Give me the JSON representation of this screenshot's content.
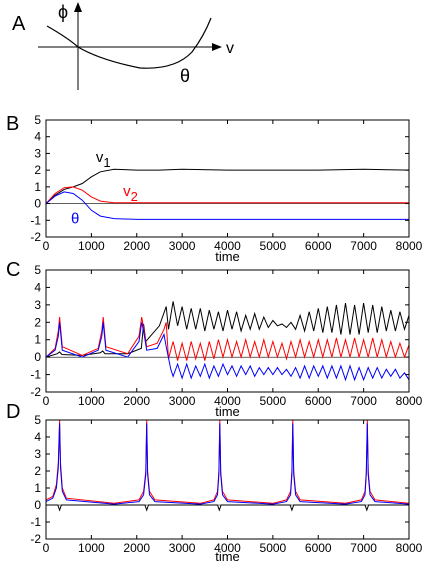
{
  "colors": {
    "black": "#000000",
    "red": "#ff0000",
    "blue": "#0000ff"
  },
  "panel_a": {
    "letter": "A",
    "phi_label": "ϕ",
    "v_label": "v",
    "theta_label": "θ"
  },
  "chart_data": [
    {
      "panel": "B",
      "type": "line",
      "xlabel": "time",
      "xlim": [
        0,
        8000
      ],
      "ylim": [
        -2,
        5
      ],
      "x_ticks": [
        0,
        1000,
        2000,
        3000,
        4000,
        5000,
        6000,
        7000,
        8000
      ],
      "y_ticks": [
        -2,
        -1,
        0,
        1,
        2,
        3,
        4,
        5
      ],
      "annotations": [
        {
          "text": "v",
          "sub": "1",
          "color": "#000000",
          "x": 1100,
          "y": 2.5
        },
        {
          "text": "v",
          "sub": "2",
          "color": "#ff0000",
          "x": 1700,
          "y": 0.45
        },
        {
          "text": "θ",
          "sub": "",
          "color": "#0000ff",
          "x": 550,
          "y": -1.2
        }
      ],
      "series": [
        {
          "color": "#000000",
          "x": [
            0,
            200,
            400,
            600,
            800,
            1000,
            1200,
            1500,
            2000,
            2500,
            3000,
            4000,
            5000,
            6000,
            7000,
            8000
          ],
          "y": [
            0,
            0.5,
            0.85,
            1.0,
            1.2,
            1.6,
            1.9,
            2.05,
            2.0,
            2.0,
            2.05,
            2.0,
            2.0,
            2.0,
            2.05,
            2.0
          ]
        },
        {
          "color": "#ff0000",
          "x": [
            0,
            200,
            400,
            600,
            800,
            1000,
            1200,
            1500,
            2000,
            3000,
            4000,
            5000,
            6000,
            7000,
            8000
          ],
          "y": [
            0,
            0.6,
            0.95,
            1.0,
            0.8,
            0.4,
            0.15,
            0.05,
            0.05,
            0.05,
            0.05,
            0.05,
            0.05,
            0.05,
            0.05
          ]
        },
        {
          "color": "#0000ff",
          "x": [
            0,
            200,
            400,
            600,
            800,
            1000,
            1200,
            1500,
            2000,
            3000,
            4000,
            5000,
            6000,
            7000,
            8000
          ],
          "y": [
            0,
            0.45,
            0.7,
            0.6,
            0.2,
            -0.4,
            -0.75,
            -0.9,
            -0.95,
            -0.95,
            -0.95,
            -0.95,
            -0.95,
            -0.95,
            -0.95
          ]
        }
      ]
    },
    {
      "panel": "C",
      "type": "line",
      "xlabel": "time",
      "xlim": [
        0,
        8000
      ],
      "ylim": [
        -2,
        5
      ],
      "x_ticks": [
        0,
        1000,
        2000,
        3000,
        4000,
        5000,
        6000,
        7000,
        8000
      ],
      "y_ticks": [
        -2,
        -1,
        0,
        1,
        2,
        3,
        4,
        5
      ],
      "series": [
        {
          "color": "#000000",
          "x": [
            0,
            250,
            300,
            350,
            800,
            1200,
            1250,
            1300,
            1800,
            2100,
            2150,
            2200,
            2500,
            2650,
            2700,
            2800,
            2900,
            3000,
            3100,
            3200,
            3300,
            3400,
            3500,
            3600,
            3700,
            3800,
            3900,
            4000,
            4100,
            4200,
            4300,
            4400,
            4500,
            4600,
            4700,
            4800,
            4900,
            5000,
            5100,
            5200,
            5300,
            5400,
            5500,
            5600,
            5700,
            5800,
            5900,
            6000,
            6100,
            6200,
            6300,
            6400,
            6500,
            6600,
            6700,
            6800,
            6900,
            7000,
            7100,
            7200,
            7300,
            7400,
            7500,
            7600,
            7700,
            7800,
            7900,
            8000
          ],
          "y": [
            0,
            0.2,
            0.3,
            0.15,
            0.1,
            0.25,
            0.35,
            0.2,
            0.2,
            0.5,
            1.9,
            0.9,
            1.8,
            2.9,
            1.6,
            3.2,
            1.8,
            2.9,
            1.6,
            2.8,
            1.6,
            2.8,
            1.5,
            2.7,
            1.6,
            2.6,
            1.5,
            2.7,
            1.6,
            2.6,
            1.5,
            2.4,
            1.6,
            2.5,
            1.6,
            2.3,
            1.7,
            2.1,
            1.8,
            1.9,
            1.7,
            2.0,
            1.6,
            2.4,
            1.5,
            2.6,
            1.5,
            2.8,
            1.4,
            2.9,
            1.4,
            3.0,
            1.3,
            3.1,
            1.3,
            3.0,
            1.3,
            3.1,
            1.4,
            3.0,
            1.4,
            2.9,
            1.5,
            2.7,
            1.5,
            2.6,
            1.6,
            2.4
          ]
        },
        {
          "color": "#ff0000",
          "x": [
            0,
            200,
            270,
            300,
            360,
            800,
            1150,
            1230,
            1260,
            1320,
            1800,
            2050,
            2110,
            2150,
            2220,
            2450,
            2600,
            2650,
            2700,
            2800,
            2900,
            3000,
            3100,
            3200,
            3300,
            3400,
            3500,
            3600,
            3700,
            3800,
            3900,
            4000,
            4100,
            4200,
            4300,
            4400,
            4500,
            4600,
            4700,
            4800,
            4900,
            5000,
            5100,
            5200,
            5300,
            5400,
            5500,
            5600,
            5700,
            5800,
            5900,
            6000,
            6100,
            6200,
            6300,
            6400,
            6500,
            6600,
            6700,
            6800,
            6900,
            7000,
            7100,
            7200,
            7300,
            7400,
            7500,
            7600,
            7700,
            7800,
            7900,
            8000
          ],
          "y": [
            0,
            0.5,
            1.5,
            2.3,
            0.6,
            0.1,
            0.5,
            1.5,
            2.3,
            0.6,
            0.2,
            1.2,
            2.3,
            1.7,
            0.6,
            0.8,
            1.6,
            2.0,
            -0.1,
            0.9,
            -0.2,
            0.8,
            -0.2,
            0.9,
            -0.1,
            0.8,
            -0.2,
            0.9,
            -0.1,
            1.0,
            0.0,
            1.0,
            0.0,
            0.9,
            0.0,
            1.0,
            0.0,
            0.9,
            0.0,
            1.0,
            0.0,
            0.9,
            0.0,
            0.8,
            -0.1,
            0.9,
            0.0,
            1.0,
            0.0,
            0.9,
            0.0,
            1.0,
            0.0,
            1.0,
            0.0,
            1.1,
            0.0,
            1.0,
            0.0,
            1.1,
            0.0,
            1.0,
            0.0,
            1.1,
            0.0,
            1.0,
            0.0,
            0.9,
            0.0,
            0.8,
            0.0,
            0.7
          ]
        },
        {
          "color": "#0000ff",
          "x": [
            0,
            200,
            270,
            300,
            360,
            800,
            1150,
            1230,
            1260,
            1320,
            1800,
            2050,
            2110,
            2150,
            2220,
            2450,
            2600,
            2650,
            2750,
            2800,
            2900,
            3000,
            3100,
            3200,
            3300,
            3400,
            3500,
            3600,
            3700,
            3800,
            3900,
            4000,
            4100,
            4200,
            4300,
            4400,
            4500,
            4600,
            4700,
            4800,
            4900,
            5000,
            5100,
            5200,
            5300,
            5400,
            5500,
            5600,
            5700,
            5800,
            5900,
            6000,
            6100,
            6200,
            6300,
            6400,
            6500,
            6600,
            6700,
            6800,
            6900,
            7000,
            7100,
            7200,
            7300,
            7400,
            7500,
            7600,
            7700,
            7800,
            7900,
            8000
          ],
          "y": [
            0,
            0.4,
            1.2,
            2.0,
            0.4,
            0.0,
            0.4,
            1.2,
            2.0,
            0.4,
            0.0,
            0.9,
            2.0,
            1.5,
            0.4,
            0.5,
            1.3,
            0.6,
            -0.7,
            -1.1,
            -0.4,
            -1.2,
            -0.4,
            -1.2,
            -0.5,
            -1.1,
            -0.4,
            -1.2,
            -0.5,
            -1.1,
            -0.4,
            -1.0,
            -0.5,
            -1.1,
            -0.5,
            -1.0,
            -0.5,
            -1.1,
            -0.6,
            -1.0,
            -0.6,
            -1.0,
            -0.6,
            -1.0,
            -0.7,
            -1.1,
            -0.6,
            -1.2,
            -0.5,
            -1.2,
            -0.5,
            -1.1,
            -0.5,
            -1.2,
            -0.5,
            -1.2,
            -0.5,
            -1.3,
            -0.5,
            -1.3,
            -0.6,
            -1.3,
            -0.6,
            -1.2,
            -0.6,
            -1.2,
            -0.7,
            -1.1,
            -0.7,
            -1.2,
            -0.9,
            -1.3
          ]
        }
      ]
    },
    {
      "panel": "D",
      "type": "line",
      "xlabel": "time",
      "xlim": [
        0,
        8000
      ],
      "ylim": [
        -2,
        5
      ],
      "x_ticks": [
        0,
        1000,
        2000,
        3000,
        4000,
        5000,
        6000,
        7000,
        8000
      ],
      "y_ticks": [
        -2,
        -1,
        0,
        1,
        2,
        3,
        4,
        5
      ],
      "series": [
        {
          "color": "#000000",
          "x": [
            0,
            260,
            300,
            340,
            2180,
            2220,
            2260,
            3780,
            3820,
            3860,
            5380,
            5420,
            5460,
            7030,
            7070,
            7110,
            8000
          ],
          "y": [
            0,
            0,
            -0.3,
            0,
            0,
            -0.3,
            0,
            0,
            -0.3,
            0,
            0,
            -0.3,
            0,
            0,
            -0.3,
            0,
            0
          ]
        },
        {
          "color": "#ff0000",
          "x": [
            0,
            150,
            230,
            270,
            300,
            320,
            360,
            450,
            1500,
            2050,
            2150,
            2200,
            2220,
            2240,
            2280,
            2400,
            3400,
            3700,
            3780,
            3810,
            3830,
            3850,
            3890,
            4000,
            5000,
            5300,
            5390,
            5420,
            5440,
            5460,
            5500,
            5600,
            6600,
            6950,
            7030,
            7060,
            7080,
            7100,
            7140,
            7250,
            8000
          ],
          "y": [
            0.3,
            0.5,
            1.2,
            2.5,
            5.0,
            2.5,
            1.0,
            0.4,
            0.1,
            0.3,
            0.8,
            2.0,
            5.0,
            2.0,
            0.8,
            0.3,
            0.1,
            0.3,
            0.8,
            2.0,
            5.0,
            2.0,
            0.8,
            0.3,
            0.1,
            0.3,
            0.8,
            2.0,
            5.0,
            2.0,
            0.8,
            0.3,
            0.1,
            0.3,
            0.8,
            2.0,
            5.0,
            2.0,
            0.8,
            0.3,
            0.1
          ]
        },
        {
          "color": "#0000ff",
          "x": [
            0,
            150,
            230,
            270,
            300,
            320,
            360,
            450,
            1500,
            2050,
            2150,
            2200,
            2220,
            2240,
            2280,
            2400,
            3400,
            3700,
            3780,
            3810,
            3830,
            3850,
            3890,
            4000,
            5000,
            5300,
            5390,
            5420,
            5440,
            5460,
            5500,
            5600,
            6600,
            6950,
            7030,
            7060,
            7080,
            7100,
            7140,
            7250,
            8000
          ],
          "y": [
            0.2,
            0.4,
            1.0,
            2.2,
            4.8,
            2.2,
            0.8,
            0.3,
            0.05,
            0.2,
            0.6,
            1.8,
            4.8,
            1.8,
            0.6,
            0.2,
            0.05,
            0.2,
            0.6,
            1.8,
            4.8,
            1.8,
            0.6,
            0.2,
            0.05,
            0.2,
            0.6,
            1.8,
            4.8,
            1.8,
            0.6,
            0.2,
            0.05,
            0.2,
            0.6,
            1.8,
            4.8,
            1.8,
            0.6,
            0.2,
            0.05
          ]
        }
      ]
    }
  ]
}
